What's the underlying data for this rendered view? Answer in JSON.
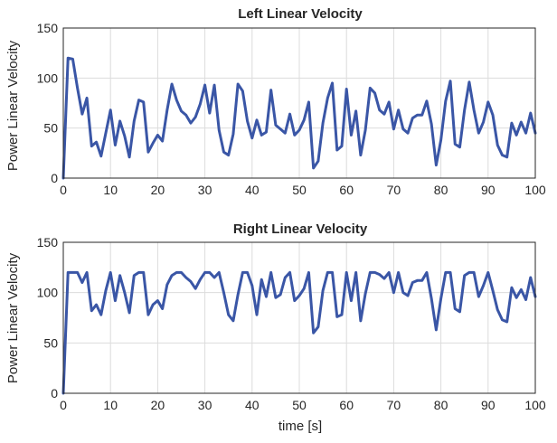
{
  "chart_data": [
    {
      "type": "line",
      "title": "Left Linear Velocity",
      "xlabel": "",
      "ylabel": "Power Linear Velocity",
      "xlim": [
        0,
        100
      ],
      "ylim": [
        0,
        150
      ],
      "xticks": [
        "0",
        "10",
        "20",
        "30",
        "40",
        "50",
        "60",
        "70",
        "80",
        "90",
        "100"
      ],
      "yticks": [
        "0",
        "50",
        "100",
        "150"
      ],
      "grid": true,
      "color": "#3a56a6",
      "series": [
        {
          "x": [
            0,
            1,
            2,
            3,
            4,
            5,
            6,
            7,
            8,
            9,
            10,
            11,
            12,
            13,
            14,
            15,
            16,
            17,
            18,
            19,
            20,
            21,
            22,
            23,
            24,
            25,
            26,
            27,
            28,
            29,
            30,
            31,
            32,
            33,
            34,
            35,
            36,
            37,
            38,
            39,
            40,
            41,
            42,
            43,
            44,
            45,
            46,
            47,
            48,
            49,
            50,
            51,
            52,
            53,
            54,
            55,
            56,
            57,
            58,
            59,
            60,
            61,
            62,
            63,
            64,
            65,
            66,
            67,
            68,
            69,
            70,
            71,
            72,
            73,
            74,
            75,
            76,
            77,
            78,
            79,
            80,
            81,
            82,
            83,
            84,
            85,
            86,
            87,
            88,
            89,
            90,
            91,
            92,
            93,
            94,
            95,
            96,
            97,
            98,
            99,
            100
          ],
          "y": [
            0,
            120,
            119,
            90,
            64,
            80,
            32,
            36,
            22,
            45,
            68,
            33,
            57,
            42,
            21,
            57,
            78,
            76,
            26,
            35,
            43,
            37,
            68,
            94,
            78,
            67,
            63,
            55,
            61,
            74,
            93,
            65,
            93,
            48,
            26,
            23,
            44,
            94,
            87,
            57,
            40,
            58,
            43,
            46,
            88,
            53,
            49,
            45,
            64,
            43,
            48,
            58,
            76,
            10,
            17,
            55,
            80,
            95,
            28,
            32,
            89,
            43,
            67,
            23,
            48,
            90,
            85,
            68,
            64,
            76,
            49,
            68,
            49,
            45,
            60,
            63,
            63,
            77,
            54,
            13,
            38,
            77,
            97,
            34,
            31,
            68,
            96,
            68,
            45,
            56,
            76,
            63,
            33,
            23,
            21,
            55,
            43,
            56,
            45,
            65,
            45
          ]
        }
      ]
    },
    {
      "type": "line",
      "title": "Right Linear Velocity",
      "xlabel": "time [s]",
      "ylabel": "Power Linear Velocity",
      "xlim": [
        0,
        100
      ],
      "ylim": [
        0,
        150
      ],
      "xticks": [
        "0",
        "10",
        "20",
        "30",
        "40",
        "50",
        "60",
        "70",
        "80",
        "90",
        "100"
      ],
      "yticks": [
        "0",
        "50",
        "100",
        "150"
      ],
      "grid": true,
      "color": "#3a56a6",
      "series": [
        {
          "x": [
            0,
            1,
            2,
            3,
            4,
            5,
            6,
            7,
            8,
            9,
            10,
            11,
            12,
            13,
            14,
            15,
            16,
            17,
            18,
            19,
            20,
            21,
            22,
            23,
            24,
            25,
            26,
            27,
            28,
            29,
            30,
            31,
            32,
            33,
            34,
            35,
            36,
            37,
            38,
            39,
            40,
            41,
            42,
            43,
            44,
            45,
            46,
            47,
            48,
            49,
            50,
            51,
            52,
            53,
            54,
            55,
            56,
            57,
            58,
            59,
            60,
            61,
            62,
            63,
            64,
            65,
            66,
            67,
            68,
            69,
            70,
            71,
            72,
            73,
            74,
            75,
            76,
            77,
            78,
            79,
            80,
            81,
            82,
            83,
            84,
            85,
            86,
            87,
            88,
            89,
            90,
            91,
            92,
            93,
            94,
            95,
            96,
            97,
            98,
            99,
            100
          ],
          "y": [
            0,
            120,
            120,
            120,
            110,
            120,
            82,
            88,
            78,
            102,
            120,
            92,
            117,
            100,
            80,
            117,
            120,
            120,
            78,
            88,
            92,
            84,
            108,
            117,
            120,
            120,
            115,
            111,
            104,
            113,
            120,
            120,
            115,
            120,
            100,
            78,
            72,
            98,
            120,
            120,
            107,
            78,
            113,
            96,
            120,
            95,
            98,
            115,
            120,
            92,
            97,
            104,
            120,
            60,
            66,
            102,
            120,
            120,
            76,
            78,
            120,
            92,
            120,
            72,
            99,
            120,
            120,
            118,
            114,
            120,
            100,
            120,
            100,
            97,
            110,
            112,
            112,
            120,
            94,
            63,
            94,
            120,
            120,
            84,
            81,
            117,
            120,
            120,
            96,
            107,
            120,
            102,
            83,
            73,
            71,
            105,
            95,
            103,
            93,
            115,
            96
          ]
        }
      ]
    }
  ]
}
